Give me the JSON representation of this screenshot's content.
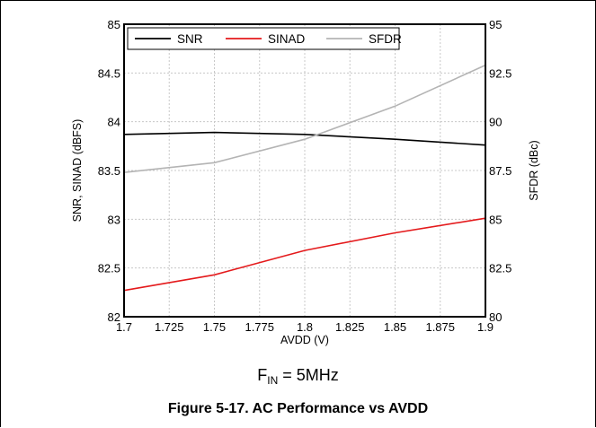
{
  "chart_data": {
    "type": "line",
    "x": [
      1.7,
      1.75,
      1.8,
      1.85,
      1.9
    ],
    "xlabel": "AVDD (V)",
    "xlim": [
      1.7,
      1.9
    ],
    "xticks": [
      "1.7",
      "1.725",
      "1.75",
      "1.775",
      "1.8",
      "1.825",
      "1.85",
      "1.875",
      "1.9"
    ],
    "ylabel": "SNR, SINAD (dBFS)",
    "ylim": [
      82,
      85
    ],
    "yticks": [
      "82",
      "82.5",
      "83",
      "83.5",
      "84",
      "84.5",
      "85"
    ],
    "y2label": "SFDR (dBc)",
    "y2lim": [
      80,
      95
    ],
    "y2ticks": [
      "80",
      "82.5",
      "85",
      "87.5",
      "90",
      "92.5",
      "95"
    ],
    "grid": true,
    "legend": "top-left",
    "series": [
      {
        "name": "SNR",
        "axis": "left",
        "color": "#000000",
        "values": [
          83.87,
          83.89,
          83.87,
          83.82,
          83.76
        ]
      },
      {
        "name": "SINAD",
        "axis": "left",
        "color": "#e41a1c",
        "values": [
          82.27,
          82.43,
          82.68,
          82.86,
          83.01
        ]
      },
      {
        "name": "SFDR",
        "axis": "right",
        "color": "#b4b4b4",
        "values": [
          87.4,
          87.9,
          89.1,
          90.8,
          92.9
        ]
      }
    ]
  },
  "condition": {
    "symbol": "F",
    "subscript": "IN",
    "text": " = 5MHz"
  },
  "caption": "Figure 5-17. AC Performance vs AVDD"
}
